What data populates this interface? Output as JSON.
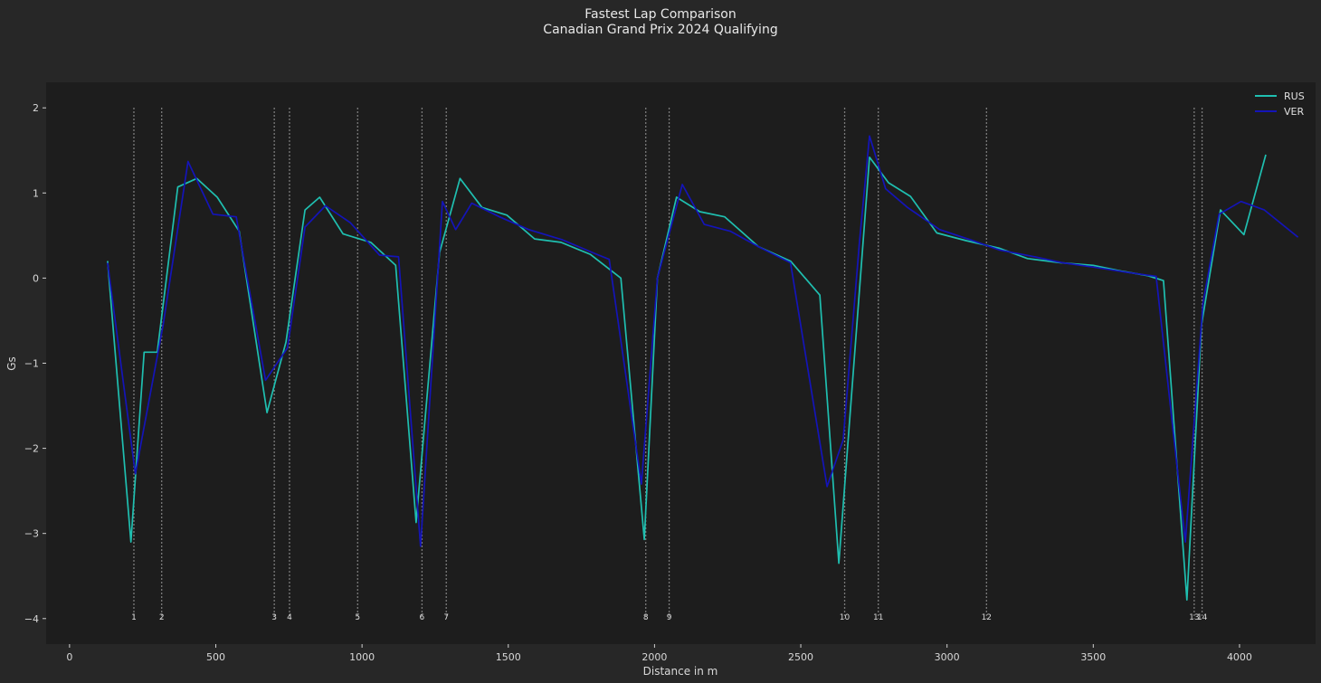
{
  "chart_data": {
    "type": "line",
    "title": "Fastest Lap Comparison",
    "subtitle": "Canadian Grand Prix 2024 Qualifying",
    "xlabel": "Distance in m",
    "ylabel": "Gs",
    "xlim": [
      -80,
      4260
    ],
    "ylim": [
      -4.3,
      2.3
    ],
    "xticks": [
      0,
      500,
      1000,
      1500,
      2000,
      2500,
      3000,
      3500,
      4000
    ],
    "yticks": [
      2,
      1,
      0,
      -1,
      -2,
      -3,
      -4
    ],
    "ytick_labels": [
      "2",
      "1",
      "0",
      "−1",
      "−2",
      "−3",
      "−4"
    ],
    "grid": false,
    "legend_position": "top-right",
    "background": "#1d1d1d",
    "figure_background": "#272727",
    "corners": [
      {
        "label": "1",
        "x": 220
      },
      {
        "label": "2",
        "x": 315
      },
      {
        "label": "3",
        "x": 700
      },
      {
        "label": "4",
        "x": 752
      },
      {
        "label": "5",
        "x": 985
      },
      {
        "label": "6",
        "x": 1205
      },
      {
        "label": "7",
        "x": 1288
      },
      {
        "label": "8",
        "x": 1970
      },
      {
        "label": "9",
        "x": 2050
      },
      {
        "label": "10",
        "x": 2650
      },
      {
        "label": "11",
        "x": 2765
      },
      {
        "label": "12",
        "x": 3135
      },
      {
        "label": "13",
        "x": 3845
      },
      {
        "label": "14",
        "x": 3872
      }
    ],
    "series": [
      {
        "name": "RUS",
        "color": "#1fbfb0",
        "x": [
          130,
          210,
          255,
          300,
          370,
          435,
          505,
          580,
          675,
          740,
          805,
          855,
          935,
          1030,
          1115,
          1185,
          1265,
          1335,
          1410,
          1495,
          1590,
          1680,
          1780,
          1885,
          1965,
          2010,
          2075,
          2155,
          2240,
          2355,
          2465,
          2565,
          2630,
          2735,
          2800,
          2875,
          2965,
          3065,
          3180,
          3275,
          3390,
          3500,
          3600,
          3685,
          3740,
          3820,
          3870,
          3935,
          4015,
          4090
        ],
        "y": [
          0.2,
          -3.1,
          -0.87,
          -0.87,
          1.07,
          1.17,
          0.95,
          0.55,
          -1.58,
          -0.75,
          0.8,
          0.95,
          0.52,
          0.42,
          0.15,
          -2.87,
          0.3,
          1.17,
          0.83,
          0.74,
          0.46,
          0.42,
          0.28,
          0.0,
          -3.07,
          0.0,
          0.95,
          0.78,
          0.72,
          0.37,
          0.2,
          -0.2,
          -3.35,
          1.42,
          1.12,
          0.96,
          0.53,
          0.44,
          0.35,
          0.23,
          0.18,
          0.15,
          0.08,
          0.03,
          -0.03,
          -3.78,
          -0.55,
          0.8,
          0.51,
          1.45
        ]
      },
      {
        "name": "VER",
        "color": "#1414b8",
        "x": [
          130,
          225,
          320,
          405,
          490,
          570,
          670,
          745,
          805,
          875,
          960,
          1060,
          1125,
          1200,
          1275,
          1320,
          1375,
          1470,
          1570,
          1685,
          1795,
          1845,
          1955,
          2010,
          2095,
          2170,
          2260,
          2355,
          2465,
          2590,
          2645,
          2700,
          2735,
          2790,
          2865,
          2975,
          3080,
          3180,
          3285,
          3395,
          3500,
          3610,
          3715,
          3815,
          3875,
          3930,
          4005,
          4085,
          4200
        ],
        "y": [
          0.18,
          -2.3,
          -0.55,
          1.37,
          0.75,
          0.72,
          -1.2,
          -0.82,
          0.6,
          0.85,
          0.65,
          0.27,
          0.25,
          -3.15,
          0.9,
          0.57,
          0.88,
          0.72,
          0.57,
          0.45,
          0.29,
          0.22,
          -2.42,
          0.0,
          1.1,
          0.63,
          0.55,
          0.37,
          0.18,
          -2.45,
          -1.9,
          0.4,
          1.67,
          1.05,
          0.83,
          0.57,
          0.45,
          0.33,
          0.26,
          0.18,
          0.13,
          0.07,
          0.02,
          -3.1,
          -0.3,
          0.75,
          0.9,
          0.8,
          0.48
        ]
      }
    ]
  }
}
